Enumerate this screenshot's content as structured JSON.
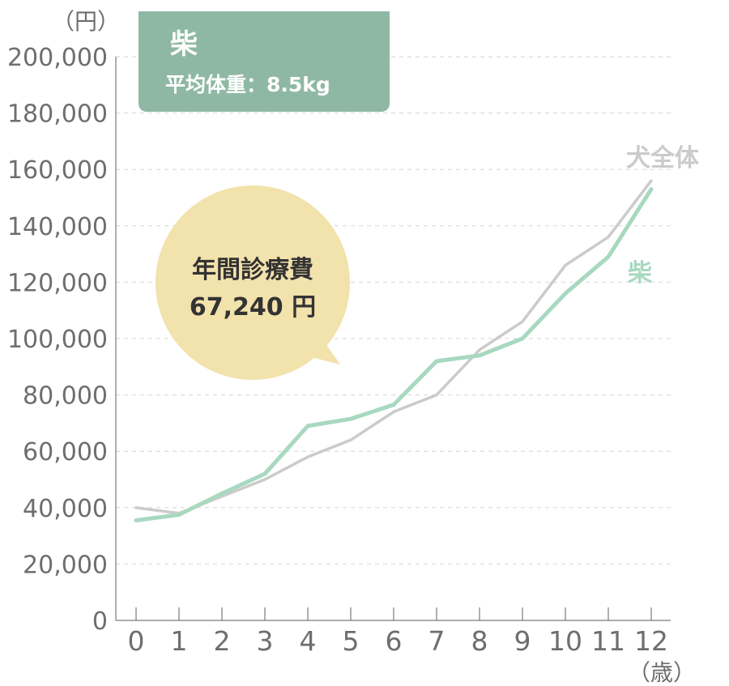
{
  "chart_data": {
    "type": "line",
    "y_unit_label": "（円）",
    "x_unit_label": "（歳）",
    "categories": [
      "0",
      "1",
      "2",
      "3",
      "4",
      "5",
      "6",
      "7",
      "8",
      "9",
      "10",
      "11",
      "12"
    ],
    "y_ticks": [
      "0",
      "20,000",
      "40,000",
      "60,000",
      "80,000",
      "100,000",
      "120,000",
      "140,000",
      "160,000",
      "180,000",
      "200,000"
    ],
    "ylim": [
      0,
      200000
    ],
    "grid": true,
    "series": [
      {
        "name": "犬全体",
        "color": "#cbcbcb",
        "values": [
          40000,
          38000,
          44000,
          50000,
          58000,
          64000,
          74000,
          80000,
          96000,
          106000,
          126000,
          136000,
          156000
        ]
      },
      {
        "name": "柴",
        "color": "#a8d8c0",
        "values": [
          35500,
          37500,
          45000,
          52000,
          69000,
          71500,
          76500,
          92000,
          94000,
          100000,
          116000,
          129000,
          153000
        ]
      }
    ]
  },
  "badge": {
    "title": "柴",
    "subtitle": "平均体重：8.5kg",
    "color": "#8fb8a4"
  },
  "bubble": {
    "line1": "年間診療費",
    "line2": "67,240 円",
    "color": "#f2e2ab"
  }
}
